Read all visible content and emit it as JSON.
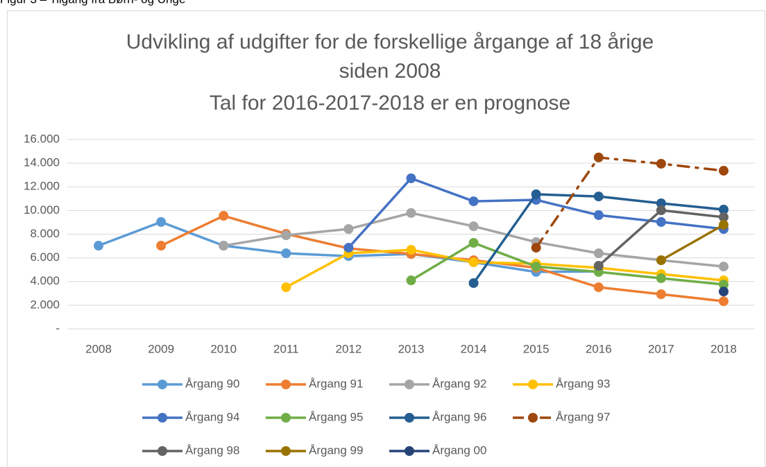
{
  "caption": "Figur 3 – Tilgang fra Børn- og Unge",
  "chart_data": {
    "type": "line",
    "title": [
      "Udvikling af udgifter for de forskellige årgange af 18 årige",
      "siden 2008",
      "Tal for 2016-2017-2018 er en prognose"
    ],
    "categories": [
      "2008",
      "2009",
      "2010",
      "2011",
      "2012",
      "2013",
      "2014",
      "2015",
      "2016",
      "2017",
      "2018"
    ],
    "ylim": [
      0,
      16000
    ],
    "yticks": [
      {
        "value": 0,
        "label": "-"
      },
      {
        "value": 2000,
        "label": "2.000"
      },
      {
        "value": 4000,
        "label": "4.000"
      },
      {
        "value": 6000,
        "label": "6.000"
      },
      {
        "value": 8000,
        "label": "8.000"
      },
      {
        "value": 10000,
        "label": "10.000"
      },
      {
        "value": 12000,
        "label": "12.000"
      },
      {
        "value": 14000,
        "label": "14.000"
      },
      {
        "value": 16000,
        "label": "16.000"
      }
    ],
    "grid": true,
    "legend": "bottom",
    "series": [
      {
        "name": "Årgang 90",
        "color": "#5b9bd5",
        "values": [
          7030,
          9030,
          7030,
          6390,
          6150,
          6330,
          5630,
          4810,
          4860,
          null,
          null
        ]
      },
      {
        "name": "Årgang 91",
        "color": "#ed7d31",
        "values": [
          null,
          7030,
          9550,
          8030,
          6800,
          6330,
          5800,
          5160,
          3520,
          2930,
          2340
        ]
      },
      {
        "name": "Årgang 92",
        "color": "#a5a5a5",
        "values": [
          null,
          null,
          7030,
          7910,
          8440,
          9790,
          8670,
          7330,
          6390,
          5800,
          5270
        ]
      },
      {
        "name": "Årgang 93",
        "color": "#ffc000",
        "values": [
          null,
          null,
          null,
          3520,
          6390,
          6680,
          5630,
          5510,
          5160,
          4630,
          4100
        ]
      },
      {
        "name": "Årgang 94",
        "color": "#4472c4",
        "values": [
          null,
          null,
          null,
          null,
          6860,
          12720,
          10780,
          10900,
          9610,
          9030,
          8440
        ]
      },
      {
        "name": "Årgang 95",
        "color": "#70ad47",
        "values": [
          null,
          null,
          null,
          null,
          null,
          4100,
          7270,
          5270,
          4810,
          4280,
          3750
        ]
      },
      {
        "name": "Årgang 96",
        "color": "#255e91",
        "values": [
          null,
          null,
          null,
          null,
          null,
          null,
          3870,
          11370,
          11190,
          10610,
          10080
        ]
      },
      {
        "name": "Årgang 97",
        "color": "#9e480e",
        "dashed": true,
        "values": [
          null,
          null,
          null,
          null,
          null,
          null,
          null,
          6860,
          14480,
          13950,
          13360
        ]
      },
      {
        "name": "Årgang 98",
        "color": "#636363",
        "values": [
          null,
          null,
          null,
          null,
          null,
          null,
          null,
          null,
          5330,
          10020,
          9440
        ]
      },
      {
        "name": "Årgang 99",
        "color": "#997300",
        "values": [
          null,
          null,
          null,
          null,
          null,
          null,
          null,
          null,
          null,
          5800,
          8790
        ]
      },
      {
        "name": "Årgang 00",
        "color": "#264478",
        "values": [
          null,
          null,
          null,
          null,
          null,
          null,
          null,
          null,
          null,
          null,
          3160
        ]
      }
    ]
  }
}
